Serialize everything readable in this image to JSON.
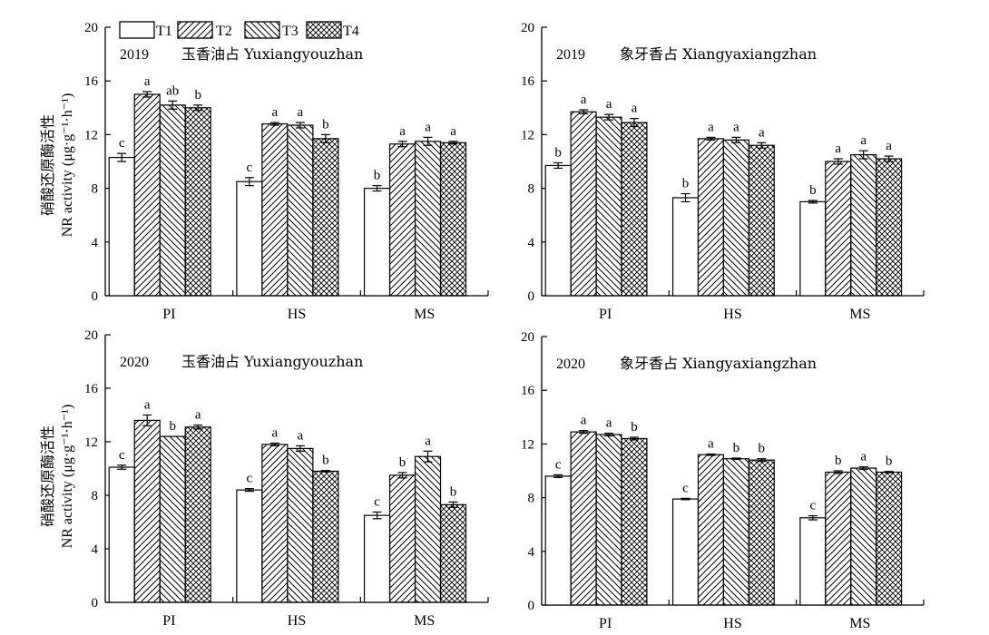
{
  "legend": {
    "items": [
      {
        "label": "T1",
        "pattern": "blank"
      },
      {
        "label": "T2",
        "pattern": "diag-right"
      },
      {
        "label": "T3",
        "pattern": "diag-left"
      },
      {
        "label": "T4",
        "pattern": "crosshatch"
      }
    ]
  },
  "y_axis_label": {
    "line1": "硝酸还原酶活性",
    "line2": "NR activity (μg·g⁻¹·h⁻¹)"
  },
  "chart_data": [
    {
      "type": "bar",
      "year": "2019",
      "cultivar": "玉香油占 Yuxiangyouzhan",
      "categories": [
        "PI",
        "HS",
        "MS"
      ],
      "ylim": [
        0,
        20
      ],
      "yticks": [
        0,
        4,
        8,
        12,
        16,
        20
      ],
      "series": [
        {
          "name": "T1",
          "values": [
            10.3,
            8.5,
            8.0
          ],
          "errors": [
            0.3,
            0.3,
            0.2
          ],
          "letters": [
            "c",
            "c",
            "b"
          ]
        },
        {
          "name": "T2",
          "values": [
            15.0,
            12.8,
            11.3
          ],
          "errors": [
            0.2,
            0.1,
            0.2
          ],
          "letters": [
            "a",
            "a",
            "a"
          ]
        },
        {
          "name": "T3",
          "values": [
            14.2,
            12.7,
            11.5
          ],
          "errors": [
            0.3,
            0.2,
            0.3
          ],
          "letters": [
            "ab",
            "a",
            "a"
          ]
        },
        {
          "name": "T4",
          "values": [
            14.0,
            11.7,
            11.4
          ],
          "errors": [
            0.2,
            0.3,
            0.1
          ],
          "letters": [
            "b",
            "b",
            "a"
          ]
        }
      ]
    },
    {
      "type": "bar",
      "year": "2019",
      "cultivar": "象牙香占 Xiangyaxiangzhan",
      "categories": [
        "PI",
        "HS",
        "MS"
      ],
      "ylim": [
        0,
        20
      ],
      "yticks": [
        0,
        4,
        8,
        12,
        16,
        20
      ],
      "series": [
        {
          "name": "T1",
          "values": [
            9.7,
            7.3,
            7.0
          ],
          "errors": [
            0.2,
            0.3,
            0.1
          ],
          "letters": [
            "b",
            "b",
            "b"
          ]
        },
        {
          "name": "T2",
          "values": [
            13.7,
            11.7,
            10.0
          ],
          "errors": [
            0.15,
            0.1,
            0.2
          ],
          "letters": [
            "a",
            "a",
            "a"
          ]
        },
        {
          "name": "T3",
          "values": [
            13.3,
            11.6,
            10.5
          ],
          "errors": [
            0.2,
            0.2,
            0.3
          ],
          "letters": [
            "a",
            "a",
            "a"
          ]
        },
        {
          "name": "T4",
          "values": [
            12.9,
            11.2,
            10.2
          ],
          "errors": [
            0.3,
            0.2,
            0.2
          ],
          "letters": [
            "a",
            "a",
            "a"
          ]
        }
      ]
    },
    {
      "type": "bar",
      "year": "2020",
      "cultivar": "玉香油占 Yuxiangyouzhan",
      "categories": [
        "PI",
        "HS",
        "MS"
      ],
      "ylim": [
        0,
        20
      ],
      "yticks": [
        0,
        4,
        8,
        12,
        16,
        20
      ],
      "series": [
        {
          "name": "T1",
          "values": [
            10.1,
            8.4,
            6.5
          ],
          "errors": [
            0.15,
            0.1,
            0.25
          ],
          "letters": [
            "c",
            "c",
            "c"
          ]
        },
        {
          "name": "T2",
          "values": [
            13.6,
            11.8,
            9.5
          ],
          "errors": [
            0.4,
            0.1,
            0.2
          ],
          "letters": [
            "a",
            "a",
            "b"
          ]
        },
        {
          "name": "T3",
          "values": [
            12.4,
            11.5,
            10.9
          ],
          "errors": [
            0.0,
            0.2,
            0.4
          ],
          "letters": [
            "b",
            "a",
            "a"
          ]
        },
        {
          "name": "T4",
          "values": [
            13.1,
            9.8,
            7.3
          ],
          "errors": [
            0.15,
            0.05,
            0.2
          ],
          "letters": [
            "a",
            "b",
            "b"
          ]
        }
      ]
    },
    {
      "type": "bar",
      "year": "2020",
      "cultivar": "象牙香占 Xiangyaxiangzhan",
      "categories": [
        "PI",
        "HS",
        "MS"
      ],
      "ylim": [
        0,
        20
      ],
      "yticks": [
        0,
        4,
        8,
        12,
        16,
        20
      ],
      "series": [
        {
          "name": "T1",
          "values": [
            9.6,
            7.9,
            6.5
          ],
          "errors": [
            0.1,
            0.05,
            0.15
          ],
          "letters": [
            "c",
            "c",
            "c"
          ]
        },
        {
          "name": "T2",
          "values": [
            12.9,
            11.2,
            9.9
          ],
          "errors": [
            0.1,
            0.05,
            0.1
          ],
          "letters": [
            "a",
            "a",
            "b"
          ]
        },
        {
          "name": "T3",
          "values": [
            12.7,
            10.9,
            10.2
          ],
          "errors": [
            0.1,
            0.05,
            0.1
          ],
          "letters": [
            "a",
            "b",
            "a"
          ]
        },
        {
          "name": "T4",
          "values": [
            12.4,
            10.8,
            9.9
          ],
          "errors": [
            0.1,
            0.1,
            0.05
          ],
          "letters": [
            "b",
            "b",
            "b"
          ]
        }
      ]
    }
  ]
}
